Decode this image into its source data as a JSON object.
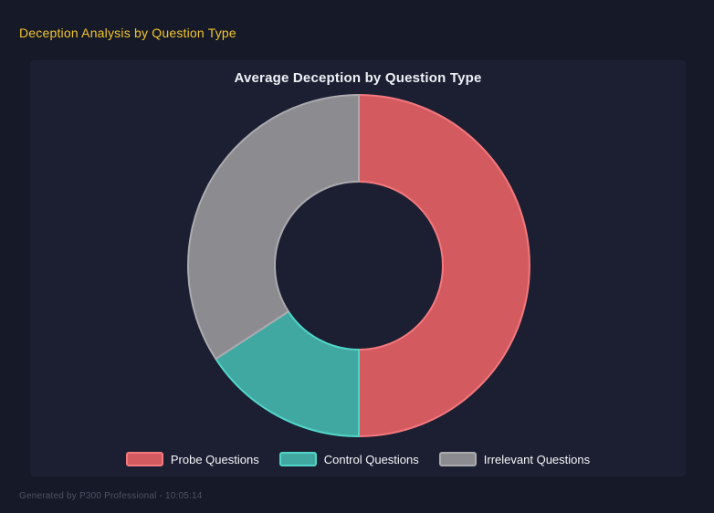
{
  "page": {
    "title": "Deception Analysis by Question Type",
    "footer": "Generated by P300 Professional - 10:05:14",
    "background_color": "#161927",
    "panel_background_color": "#1b1f31",
    "title_color": "#f0c52f"
  },
  "chart_data": {
    "type": "pie",
    "subtype": "doughnut",
    "title": "Average Deception by Question Type",
    "categories": [
      "Probe Questions",
      "Control Questions",
      "Irrelevant Questions"
    ],
    "values_percent": [
      50,
      15.8,
      34.2
    ],
    "colors": [
      {
        "fill": "#d35b60",
        "border": "#f4787d"
      },
      {
        "fill": "#41a8a1",
        "border": "#52d5c9"
      },
      {
        "fill": "#8b8b90",
        "border": "#abaaaf"
      }
    ],
    "start_angle_deg": 0,
    "direction": "clockwise",
    "cutout_ratio": 0.49,
    "legend_position": "bottom",
    "grid": false
  }
}
